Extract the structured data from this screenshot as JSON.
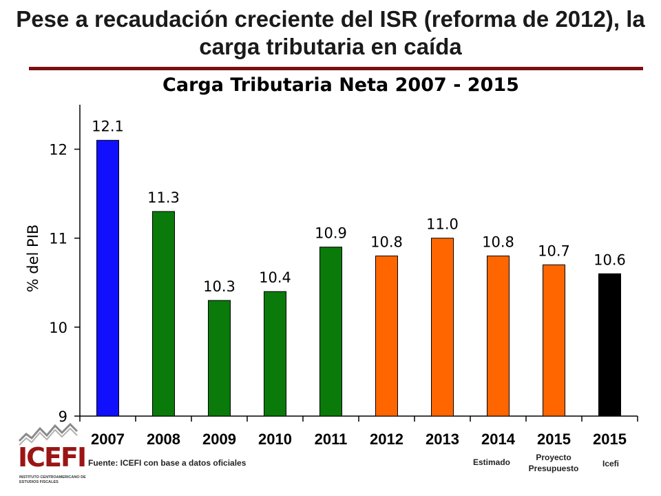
{
  "slide": {
    "title": "Pese a recaudación creciente del ISR (reforma de 2012), la carga tributaria en caída"
  },
  "chart_data": {
    "type": "bar",
    "title": "Carga Tributaria Neta 2007 - 2015",
    "ylabel": "% del PIB",
    "xlabel": "",
    "ylim": [
      9,
      12.5
    ],
    "yticks": [
      9,
      10,
      11,
      12
    ],
    "grid": false,
    "categories": [
      "2007",
      "2008",
      "2009",
      "2010",
      "2011",
      "2012",
      "2013",
      "2014",
      "2015",
      "2015"
    ],
    "values": [
      12.1,
      11.3,
      10.3,
      10.4,
      10.9,
      10.8,
      11.0,
      10.8,
      10.7,
      10.6
    ],
    "value_labels": [
      "12.1",
      "11.3",
      "10.3",
      "10.4",
      "10.9",
      "10.8",
      "11.0",
      "10.8",
      "10.7",
      "10.6"
    ],
    "colors": [
      "#1010ff",
      "#0a7a0a",
      "#0a7a0a",
      "#0a7a0a",
      "#0a7a0a",
      "#ff6600",
      "#ff6600",
      "#ff6600",
      "#ff6600",
      "#000000"
    ]
  },
  "notes": {
    "estimado": "Estimado",
    "proyecto_line1": "Proyecto",
    "proyecto_line2": "Presupuesto",
    "icefi": "Icefi"
  },
  "footer": {
    "source": "Fuente: ICEFI con base a datos oficiales"
  },
  "logo": {
    "name": "ICEFI",
    "subtitle": "INSTITUTO CENTROAMERICANO DE ESTUDIOS FISCALES",
    "icon": "chart-line-logo-icon"
  }
}
